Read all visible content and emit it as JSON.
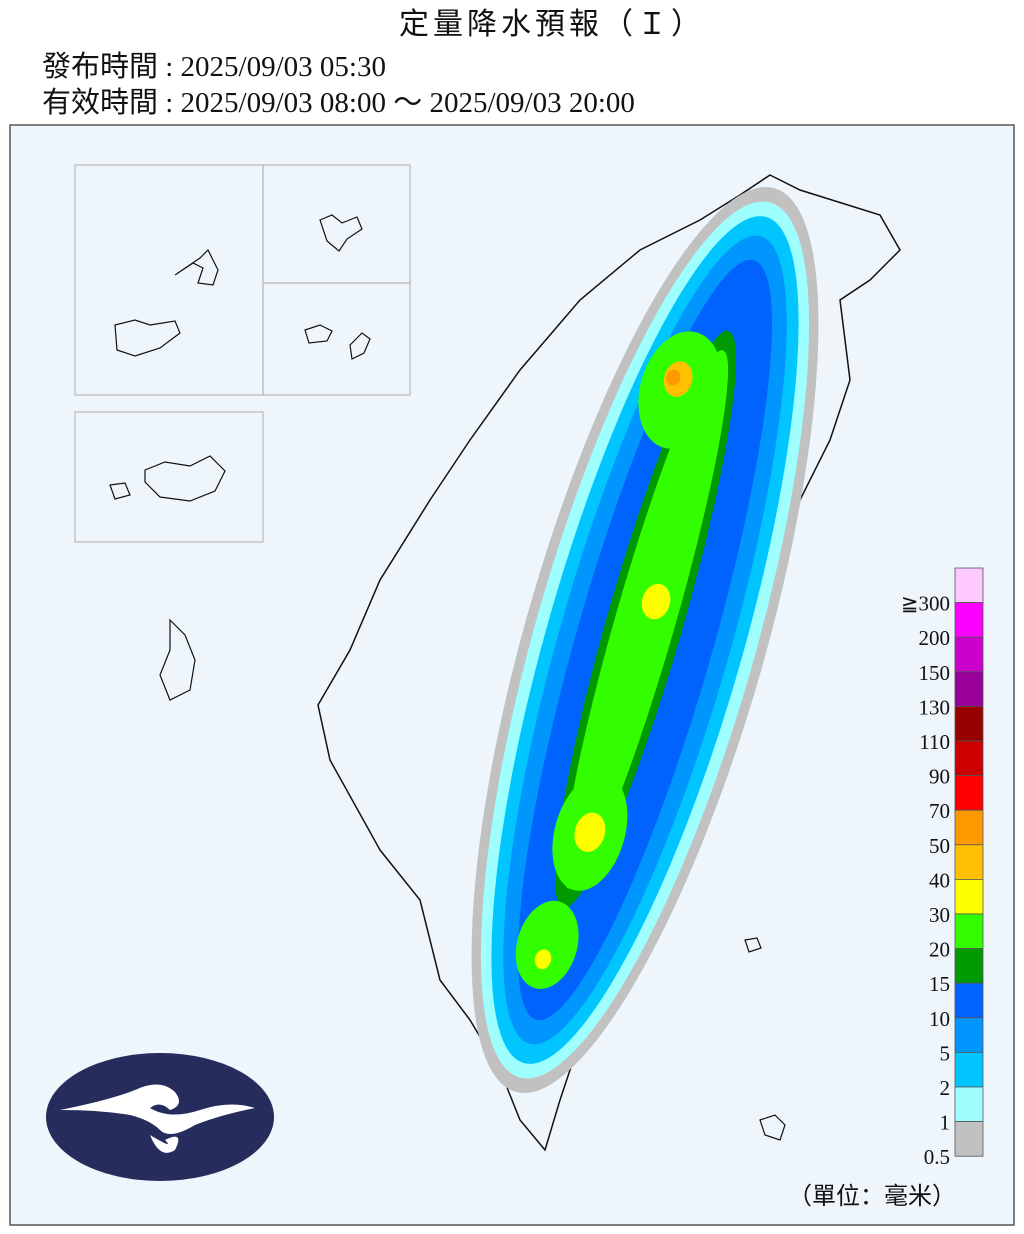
{
  "header": {
    "title": "定量降水預報（Ｉ）",
    "issued": "發布時間 : 2025/09/03 05:30",
    "valid": "有效時間 : 2025/09/03 08:00 ～ 2025/09/03 20:00"
  },
  "legend": {
    "unit": "（單位：毫米）",
    "items": [
      {
        "label": "≧300",
        "color": "#fec9fe"
      },
      {
        "label": "200",
        "color": "#fe00fe"
      },
      {
        "label": "150",
        "color": "#cc00cc"
      },
      {
        "label": "130",
        "color": "#990099"
      },
      {
        "label": "110",
        "color": "#990000"
      },
      {
        "label": "90",
        "color": "#cc0000"
      },
      {
        "label": "70",
        "color": "#fe0000"
      },
      {
        "label": "50",
        "color": "#fe9900"
      },
      {
        "label": "40",
        "color": "#fec000"
      },
      {
        "label": "30",
        "color": "#fefe00"
      },
      {
        "label": "20",
        "color": "#33fe00"
      },
      {
        "label": "15",
        "color": "#009900"
      },
      {
        "label": "10",
        "color": "#0063fe"
      },
      {
        "label": "5",
        "color": "#0096fe"
      },
      {
        "label": "2",
        "color": "#00c5fe"
      },
      {
        "label": "1",
        "color": "#9ffefe"
      },
      {
        "label": "0.5",
        "color": "#c1c1c1"
      }
    ]
  }
}
